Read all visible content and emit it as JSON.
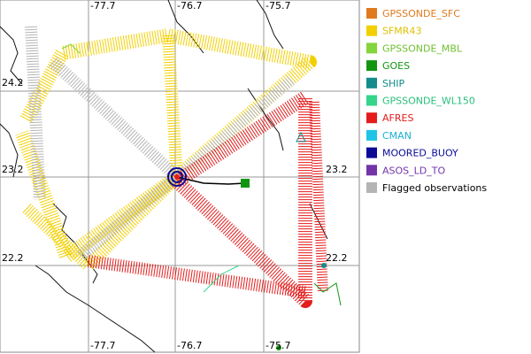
{
  "map": {
    "lon_labels_top": [
      "-77.7",
      "-76.7",
      "-75.7"
    ],
    "lon_labels_bottom": [
      "-77.7",
      "-76.7",
      "-75.7"
    ],
    "lat_labels_left": [
      "24.2",
      "23.2",
      "22.2"
    ],
    "lat_labels_right": [
      "23.2",
      "22.2"
    ]
  },
  "legend": [
    {
      "label": "GPSSONDE_SFC",
      "color": "#e07a1e",
      "text_color": "#e07a1e"
    },
    {
      "label": "SFMR43",
      "color": "#f2d000",
      "text_color": "#e0c000"
    },
    {
      "label": "GPSSONDE_MBL",
      "color": "#84d43c",
      "text_color": "#70c030"
    },
    {
      "label": "GOES",
      "color": "#129612",
      "text_color": "#129612"
    },
    {
      "label": "SHIP",
      "color": "#128c8c",
      "text_color": "#128c8c"
    },
    {
      "label": "GPSSONDE_WL150",
      "color": "#34d48a",
      "text_color": "#28c07a"
    },
    {
      "label": "AFRES",
      "color": "#e41c1c",
      "text_color": "#e41c1c"
    },
    {
      "label": "CMAN",
      "color": "#1ec4e6",
      "text_color": "#1ab0d0"
    },
    {
      "label": "MOORED_BUOY",
      "color": "#0a0a96",
      "text_color": "#0a0a96"
    },
    {
      "label": "ASOS_LD_TO",
      "color": "#7434a8",
      "text_color": "#7434a8"
    },
    {
      "label": "Flagged observations",
      "color": "#b4b4b4",
      "text_color": "#000000"
    }
  ]
}
